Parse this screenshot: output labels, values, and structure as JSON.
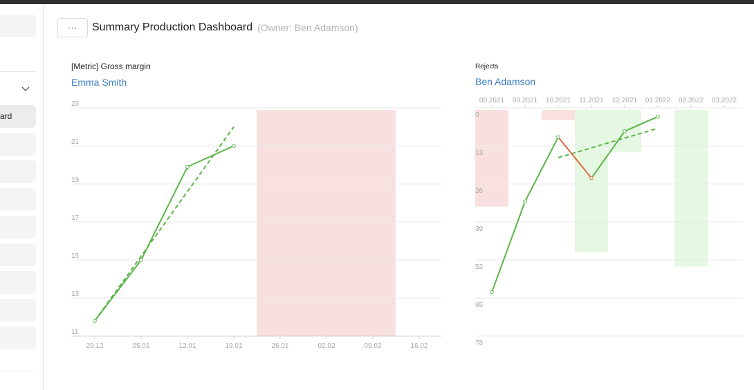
{
  "sidebar": {
    "active_item_label": "ard",
    "chevron_icon": "chevron-down-icon"
  },
  "header": {
    "menu_label": "···",
    "title": "Summary Production Dashboard",
    "owner": "(Owner: Ben Adamson)"
  },
  "colors": {
    "line_green": "#5bb346",
    "line_red": "#e0683f",
    "band_red": "#f9e0e0",
    "band_green": "#e4f8e2",
    "owner_link": "#3f7fc9"
  },
  "widget_gross": {
    "title": "[Metric] Gross margin",
    "owner": "Emma Smith"
  },
  "widget_rejects": {
    "title": "Rejects",
    "owner": "Ben Adamson"
  },
  "chart_data": [
    {
      "type": "line",
      "title": "[Metric] Gross margin",
      "x_ticks": [
        "29.12",
        "05.01",
        "12.01",
        "19.01",
        "26.01",
        "02.02",
        "09.02",
        "16.02"
      ],
      "y_ticks": [
        "23",
        "21",
        "19",
        "17",
        "15",
        "13",
        "11"
      ],
      "ylim": [
        11,
        23
      ],
      "series": [
        {
          "x": [
            "29.12",
            "05.01",
            "12.01",
            "19.01"
          ],
          "values": [
            11.8,
            15.0,
            19.9,
            21.0
          ]
        }
      ],
      "trend": {
        "from": [
          "29.12",
          11.8
        ],
        "to": [
          "19.01",
          22.0
        ],
        "style": "dashed"
      },
      "highlight_band": {
        "from": "26.01",
        "to": "09.02",
        "color": "red"
      },
      "grid": true
    },
    {
      "type": "line",
      "title": "Rejects",
      "x_ticks": [
        "08.2021",
        "09.2021",
        "10.2021",
        "11.2021",
        "12.2021",
        "01.2022",
        "02.2022",
        "03.2022"
      ],
      "y_ticks": [
        "0",
        "13",
        "26",
        "39",
        "52",
        "65",
        "78"
      ],
      "ylim": [
        0,
        78
      ],
      "y_inverted": true,
      "series": [
        {
          "x": [
            "08.2021",
            "09.2021",
            "10.2021",
            "11.2021",
            "12.2021",
            "01.2022"
          ],
          "values": [
            63,
            32,
            10,
            24,
            8,
            3
          ]
        }
      ],
      "segment_colors": [
        "green",
        "green",
        "red",
        "green",
        "green"
      ],
      "trend": {
        "from": [
          "10.2021",
          17
        ],
        "to": [
          "01.2022",
          7
        ],
        "style": "dashed"
      },
      "bars": [
        {
          "x": "08.2021",
          "from": 0,
          "to": 33,
          "color": "red"
        },
        {
          "x": "09.2021",
          "from": 0,
          "to": 0,
          "color": "white"
        },
        {
          "x": "10.2021",
          "from": 0,
          "to": 3.5,
          "color": "red"
        },
        {
          "x": "11.2021",
          "from": 0,
          "to": 48.5,
          "color": "green"
        },
        {
          "x": "12.2021",
          "from": 0,
          "to": 14.5,
          "color": "green"
        },
        {
          "x": "01.2022",
          "from": 0,
          "to": 4.5,
          "color": "white"
        },
        {
          "x": "02.2022",
          "from": 0,
          "to": 53.5,
          "color": "green"
        }
      ],
      "grid": true
    }
  ]
}
